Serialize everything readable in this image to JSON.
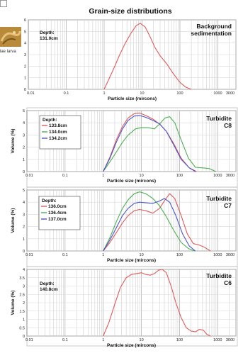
{
  "figure": {
    "title": "Grain-size distributions",
    "thumbnail_label": "lae larva"
  },
  "chart_data": [
    {
      "type": "line",
      "xscale": "log",
      "xlim": [
        0.01,
        3000
      ],
      "ylim": [
        0,
        6
      ],
      "xlabel": "Particle size (mircons)",
      "ylabel": "",
      "xticks": [
        "0.01",
        "0.1",
        "1",
        "10",
        "100",
        "1000",
        "3000"
      ],
      "yticks": [
        "0",
        "1",
        "2",
        "3",
        "4",
        "5",
        "6"
      ],
      "annotation": "Background\nsedimentation",
      "legend_title": "Depth:",
      "grid": true,
      "series": [
        {
          "name": "131.0cm",
          "color": "#e05a5a",
          "x": [
            1,
            1.3,
            1.8,
            2.5,
            3.5,
            5,
            7,
            9,
            12,
            16,
            22,
            30,
            45,
            65,
            100,
            140,
            200
          ],
          "y": [
            0,
            0.8,
            1.8,
            2.9,
            3.9,
            4.8,
            5.5,
            5.7,
            5.4,
            4.6,
            3.6,
            2.9,
            2.2,
            1.4,
            0.6,
            0.2,
            0
          ]
        }
      ]
    },
    {
      "type": "line",
      "xscale": "log",
      "xlim": [
        0.01,
        3000
      ],
      "ylim": [
        0,
        5
      ],
      "xlabel": "Particle size (mircons)",
      "ylabel": "Volume (%)",
      "xticks": [
        "0.01",
        "0.1",
        "1",
        "10",
        "100",
        "1000",
        "3000"
      ],
      "yticks": [
        "0",
        "1",
        "2",
        "3",
        "4",
        "5"
      ],
      "annotation": "Turbidite\nC8",
      "legend_title": "Depth:",
      "grid": true,
      "series": [
        {
          "name": "133.8cm",
          "color": "#e05a5a",
          "x": [
            1,
            1.5,
            2.2,
            3.2,
            4.5,
            6.5,
            9,
            13,
            20,
            30,
            45,
            70,
            110,
            180,
            280
          ],
          "y": [
            0,
            1.2,
            2.6,
            3.7,
            4.4,
            4.75,
            4.8,
            4.6,
            4.3,
            3.9,
            3.3,
            2.3,
            1.1,
            0.3,
            0
          ]
        },
        {
          "name": "134.0cm",
          "color": "#4caf50",
          "x": [
            1,
            1.5,
            2.2,
            3.2,
            4.5,
            7,
            10,
            15,
            22,
            30,
            42,
            55,
            75,
            110,
            170,
            260,
            400,
            600,
            900
          ],
          "y": [
            0,
            0.8,
            1.6,
            2.4,
            3.0,
            3.5,
            3.6,
            3.6,
            3.5,
            3.9,
            4.4,
            4.5,
            4.0,
            2.6,
            1.1,
            0.35,
            0.3,
            0.25,
            0
          ]
        },
        {
          "name": "134.2cm",
          "color": "#4a56c8",
          "x": [
            1,
            1.5,
            2.2,
            3.2,
            4.5,
            6.5,
            9,
            13,
            20,
            30,
            45,
            70,
            110,
            180,
            260
          ],
          "y": [
            0,
            1.1,
            2.4,
            3.5,
            4.2,
            4.55,
            4.6,
            4.45,
            4.2,
            3.9,
            3.3,
            2.2,
            1.0,
            0.3,
            0
          ]
        }
      ]
    },
    {
      "type": "line",
      "xscale": "log",
      "xlim": [
        0.01,
        3000
      ],
      "ylim": [
        0,
        5
      ],
      "xlabel": "Particle size (mircons)",
      "ylabel": "Volume (%)",
      "xticks": [
        "0.01",
        "0.1",
        "1",
        "10",
        "100",
        "1000",
        "3000"
      ],
      "yticks": [
        "0",
        "1",
        "2",
        "3",
        "4",
        "5"
      ],
      "annotation": "Turbidite\nC7",
      "legend_title": "Depth:",
      "grid": true,
      "series": [
        {
          "name": "136.0cm",
          "color": "#e05a5a",
          "x": [
            1,
            1.5,
            2.2,
            3.2,
            4.5,
            6.5,
            9,
            13,
            20,
            30,
            42,
            55,
            75,
            110,
            160,
            230,
            320,
            450,
            650
          ],
          "y": [
            0,
            0.7,
            1.5,
            2.3,
            2.9,
            3.3,
            3.4,
            3.3,
            3.1,
            3.5,
            4.2,
            4.7,
            4.3,
            2.9,
            1.4,
            0.6,
            0.5,
            0.3,
            0
          ]
        },
        {
          "name": "136.4cm",
          "color": "#4caf50",
          "x": [
            1,
            1.5,
            2.2,
            3.2,
            4.5,
            6.5,
            9,
            13,
            20,
            30,
            45,
            70,
            110,
            170,
            250
          ],
          "y": [
            0,
            1.1,
            2.4,
            3.5,
            4.2,
            4.7,
            4.85,
            4.7,
            4.3,
            3.7,
            2.8,
            1.7,
            0.7,
            0.2,
            0
          ]
        },
        {
          "name": "137.0cm",
          "color": "#4a56c8",
          "x": [
            1,
            1.5,
            2.2,
            3.2,
            4.5,
            6.5,
            9,
            13,
            20,
            30,
            40,
            55,
            80,
            120,
            180,
            260
          ],
          "y": [
            0,
            0.9,
            1.9,
            2.9,
            3.5,
            3.9,
            4.0,
            3.95,
            3.9,
            4.1,
            4.3,
            4.0,
            2.9,
            1.4,
            0.4,
            0
          ]
        }
      ]
    },
    {
      "type": "line",
      "xscale": "log",
      "xlim": [
        0.01,
        3000
      ],
      "ylim": [
        0,
        4
      ],
      "xlabel": "Particle size (mircons)",
      "ylabel": "Volume (%)",
      "xticks": [
        "0.01",
        "0.1",
        "1",
        "10",
        "100",
        "1000",
        "3000"
      ],
      "yticks": [
        "0",
        "0.5",
        "1",
        "1.5",
        "2",
        "2.5",
        "3",
        "3.5",
        "4"
      ],
      "annotation": "Turbidite\nC6",
      "legend_title": "Depth:",
      "grid": true,
      "series": [
        {
          "name": "140.8cm",
          "color": "#e05a5a",
          "x": [
            1,
            1.4,
            2,
            2.8,
            4,
            5.5,
            7.5,
            10,
            13,
            17,
            22,
            28,
            35,
            45,
            60,
            80,
            110,
            150,
            200,
            260,
            330,
            420,
            520,
            650
          ],
          "y": [
            0,
            0.8,
            1.9,
            2.9,
            3.5,
            3.7,
            3.75,
            3.8,
            3.7,
            3.65,
            3.75,
            3.95,
            4.0,
            3.8,
            3.0,
            2.0,
            1.1,
            0.5,
            0.3,
            0.25,
            0.4,
            0.35,
            0.1,
            0
          ]
        }
      ]
    }
  ]
}
